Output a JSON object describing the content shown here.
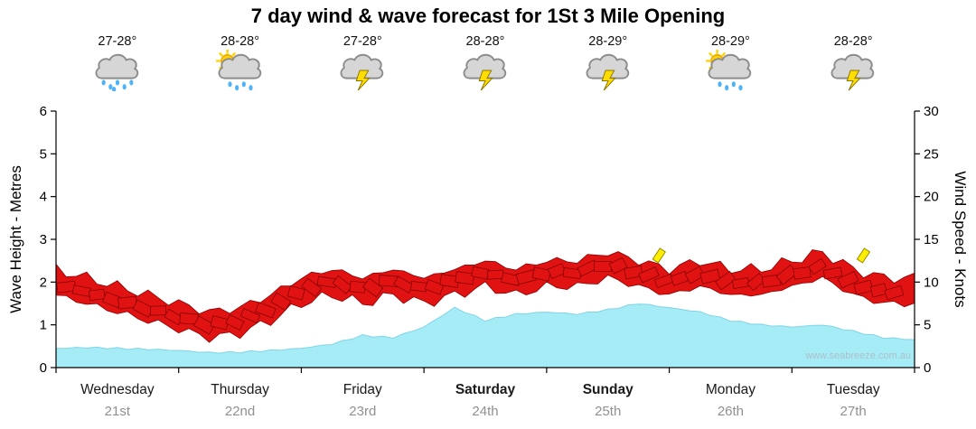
{
  "title": "7 day wind & wave forecast for 1St 3 Mile Opening",
  "watermark": "www.seabreeze.com.au",
  "axes": {
    "left_label": "Wave Height - Metres",
    "right_label": "Wind Speed - Knots",
    "left_ticks": [
      "0",
      "1",
      "2",
      "3",
      "4",
      "5",
      "6"
    ],
    "right_ticks": [
      "0",
      "5",
      "10",
      "15",
      "20",
      "25",
      "30"
    ]
  },
  "days": [
    {
      "name": "Wednesday",
      "date": "21st",
      "temp": "27-28°",
      "icon": "rain",
      "bold": false
    },
    {
      "name": "Thursday",
      "date": "22nd",
      "temp": "28-28°",
      "icon": "sun-rain",
      "bold": false
    },
    {
      "name": "Friday",
      "date": "23rd",
      "temp": "27-28°",
      "icon": "storm",
      "bold": false
    },
    {
      "name": "Saturday",
      "date": "24th",
      "temp": "28-28°",
      "icon": "storm",
      "bold": true
    },
    {
      "name": "Sunday",
      "date": "25th",
      "temp": "28-29°",
      "icon": "storm",
      "bold": true
    },
    {
      "name": "Monday",
      "date": "26th",
      "temp": "28-29°",
      "icon": "sun-rain",
      "bold": false
    },
    {
      "name": "Tuesday",
      "date": "27th",
      "temp": "28-28°",
      "icon": "storm",
      "bold": false
    }
  ],
  "chart_data": {
    "type": "area",
    "x_unit": "hours from start of Wednesday, 6h steps over 7 days",
    "x_range_hours": [
      0,
      168
    ],
    "left_axis": {
      "label": "Wave Height - Metres",
      "range": [
        0,
        6
      ]
    },
    "right_axis": {
      "label": "Wind Speed - Knots",
      "range": [
        0,
        30
      ]
    },
    "grid": false,
    "series": [
      {
        "name": "Wave Height (m)",
        "axis": "left",
        "style": "filled-area",
        "color": "#A5ECF6",
        "edge_color": "#7FD4E6",
        "values": [
          0.45,
          0.47,
          0.45,
          0.43,
          0.4,
          0.35,
          0.36,
          0.4,
          0.45,
          0.55,
          0.75,
          0.7,
          0.95,
          1.4,
          1.1,
          1.25,
          1.3,
          1.25,
          1.35,
          1.5,
          1.4,
          1.3,
          1.1,
          1.0,
          0.95,
          1.0,
          0.85,
          0.7,
          0.65
        ]
      },
      {
        "name": "Wind Speed (knots)",
        "axis": "right",
        "style": "jagged-red-band",
        "color": "#E01212",
        "edge_color": "#8F0000",
        "values": [
          10,
          9,
          8,
          7,
          6,
          5,
          5.5,
          7,
          9,
          10,
          9,
          10,
          9,
          10,
          11,
          10,
          11,
          11,
          12,
          11,
          10,
          11,
          10,
          10,
          11,
          12,
          10,
          9,
          9
        ]
      }
    ],
    "annotations": [
      {
        "type": "gust-flag",
        "color": "#FFEE00",
        "x_hours": 118,
        "knots": 13
      },
      {
        "type": "gust-flag",
        "color": "#FFEE00",
        "x_hours": 158,
        "knots": 13
      }
    ]
  }
}
